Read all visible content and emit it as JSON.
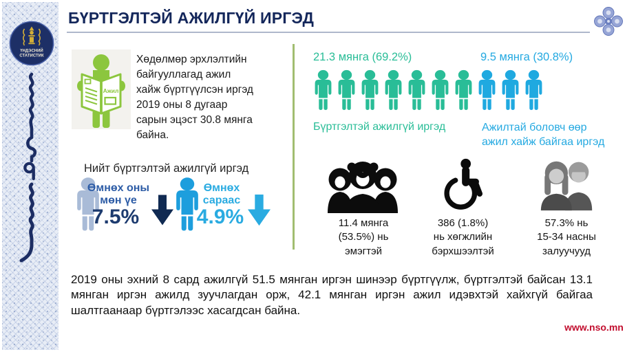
{
  "page": {
    "title": "БҮРТГЭЛТЭЙ АЖИЛГҮЙ ИРГЭД",
    "website": "www.nso.mn"
  },
  "sidebar": {
    "logo_line1": "ҮНДЭСНИЙ",
    "logo_line2": "СТАТИСТИК"
  },
  "intro": {
    "newspaper_label": "Ажил",
    "lines": [
      "Хөдөлмөр эрхлэлтийн",
      "байгууллагад ажил",
      "хайж бүртгүүлсэн иргэд",
      "2019 оны 8 дугаар",
      "сарын эцэст 30.8 мянга",
      "байна."
    ]
  },
  "totals": {
    "heading": "Нийт бүртгэлтэй ажилгүй иргэд",
    "previous_year": {
      "label": [
        "Өмнөх оны",
        "мөн үе"
      ],
      "value": "7.5%",
      "direction": "down"
    },
    "previous_month": {
      "label": [
        "Өмнөх",
        "сараас"
      ],
      "value": "4.9%",
      "direction": "down"
    }
  },
  "breakdown": {
    "registered": {
      "value": "21.3 мянга (69.2%)",
      "label": "Бүртгэлтэй ажилгүй иргэд",
      "icon_count": 7,
      "color": "#29bd97"
    },
    "employed_seeking": {
      "value": "9.5 мянга (30.8%)",
      "label": [
        "Ажилтай боловч өөр",
        "ажил хайж байгаа иргэд"
      ],
      "icon_count": 3,
      "color": "#1fa9e0"
    }
  },
  "highlights": [
    {
      "name": "female",
      "lines": [
        "11.4 мянга",
        "(53.5%) нь",
        "эмэгтэй"
      ]
    },
    {
      "name": "disability",
      "lines": [
        "386 (1.8%)",
        "нь хөгжлийн",
        "бэрхшээлтэй"
      ]
    },
    {
      "name": "youth",
      "lines": [
        "57.3% нь",
        "15-34 насны",
        "залуучууд"
      ]
    }
  ],
  "footer": {
    "text": "2019 оны эхний 8 сард ажилгүй 51.5 мянган иргэн шинээр бүртгүүлж, бүртгэлтэй байсан 13.1 мянган иргэн ажилд зуучлагдан орж, 42.1 мянган иргэн ажил идэвхтэй хайхгүй байгаа шалтгаанаар бүртгэлээс хасагдсан байна."
  },
  "chart_data": {
    "type": "pictograph",
    "title": "Бүртгэлтэй ажилгүй иргэд, 2019 оны 8 дугаар сарын эцэст",
    "total_thousand": 30.8,
    "categories": [
      "Бүртгэлтэй ажилгүй иргэд",
      "Ажилтай боловч өөр ажил хайж байгаа иргэд"
    ],
    "values_thousand": [
      21.3,
      9.5
    ],
    "percent": [
      69.2,
      30.8
    ],
    "icons_total": 10,
    "icons_per_category": [
      7,
      3
    ],
    "category_colors": [
      "#29bd97",
      "#1fa9e0"
    ],
    "annotations": [
      {
        "label": "Өмнөх оны мөн үе",
        "change_percent": -7.5
      },
      {
        "label": "Өмнөх сараас",
        "change_percent": -4.9
      },
      {
        "label": "эмэгтэй",
        "value": "11.4 мянга (53.5%)"
      },
      {
        "label": "хөгжлийн бэрхшээлтэй",
        "value": "386 (1.8%)"
      },
      {
        "label": "15-34 насны залуучууд",
        "value": "57.3%"
      },
      {
        "label": "шинээр бүртгүүлсэн",
        "value": "51.5 мянга"
      },
      {
        "label": "ажилд зуучлагдан орсон",
        "value": "13.1 мянга"
      },
      {
        "label": "бүртгэлээс хасагдсан",
        "value": "42.1 мянга"
      }
    ]
  },
  "colors": {
    "navy": "#14275b",
    "teal": "#29bd97",
    "blue": "#1fa9e0",
    "label_blue": "#2d5ca6",
    "value_navy": "#1d3b6f",
    "arrow_navy": "#102a52",
    "person_gray_blue": "#a9bbd7",
    "person_bright_blue": "#1d9edd",
    "separator_green": "#a1bd70",
    "icon_green": "#8cc63e",
    "red": "#c20f2f"
  }
}
